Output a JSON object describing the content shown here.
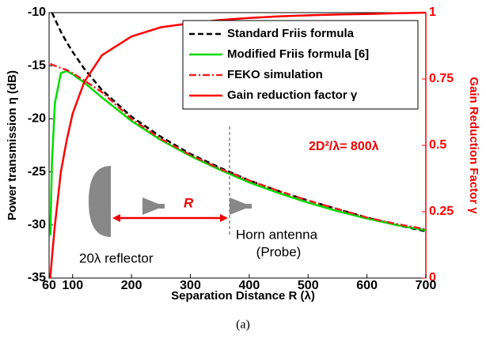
{
  "chart_data": {
    "type": "line",
    "xlabel": "Separation Distance R (λ)",
    "ylabel": "Power transmission η (dB)",
    "y2label": "Gain Reduction Factor γ",
    "caption": "(a)",
    "x": [
      62,
      65,
      70,
      80,
      90,
      100,
      120,
      150,
      200,
      250,
      300,
      350,
      400,
      450,
      500,
      550,
      600,
      650,
      700
    ],
    "series": [
      {
        "name": "Standard Friis formula",
        "color": "#000000",
        "style": "dashed",
        "values": [
          null,
          -10,
          -10.6,
          -11.8,
          -12.8,
          -13.7,
          -15.3,
          -17.3,
          -19.8,
          -21.7,
          -23.3,
          -24.6,
          -25.8,
          -26.8,
          -27.7,
          -28.5,
          -29.3,
          -30,
          -30.6
        ]
      },
      {
        "name": "Modified Friis formula [6]",
        "color": "#00dd00",
        "style": "solid",
        "values": [
          -31,
          -24,
          -18.5,
          -15.7,
          -15.5,
          -15.8,
          -16.6,
          -18,
          -20.2,
          -22,
          -23.5,
          -24.8,
          -26,
          -27,
          -27.9,
          -28.7,
          -29.4,
          -30,
          -30.5
        ]
      },
      {
        "name": "FEKO simulation",
        "color": "#ee2222",
        "style": "dashdot",
        "values": [
          -14.8,
          -14.9,
          -15,
          -15.2,
          -15.4,
          -15.7,
          -16.4,
          -17.5,
          -20,
          -21.9,
          -23.4,
          -24.7,
          -25.8,
          -26.8,
          -27.7,
          -28.5,
          -29.3,
          -29.9,
          -30.4
        ]
      },
      {
        "name": "Gain reduction factor γ",
        "color": "#ff0000",
        "style": "solid",
        "axis": "y2",
        "values": [
          0,
          0.08,
          0.2,
          0.4,
          0.52,
          0.62,
          0.74,
          0.84,
          0.91,
          0.945,
          0.96,
          0.972,
          0.98,
          0.986,
          0.99,
          0.993,
          0.995,
          0.998,
          1
        ]
      }
    ],
    "xlim": [
      60,
      700
    ],
    "xticks": [
      60,
      100,
      200,
      300,
      400,
      500,
      600,
      700
    ],
    "ylim": [
      -35,
      -10
    ],
    "yticks": [
      -35,
      -30,
      -25,
      -20,
      -15,
      -10
    ],
    "y2lim": [
      0,
      1
    ],
    "y2ticks": [
      0,
      0.25,
      0.5,
      0.75,
      1
    ],
    "y2color": "#ff0000",
    "legend": "upper right",
    "annotations": {
      "far_field": "2D²/λ= 800λ",
      "distance": "R",
      "horn": "Horn antenna",
      "probe": "(Probe)",
      "reflector": "20λ reflector"
    }
  }
}
